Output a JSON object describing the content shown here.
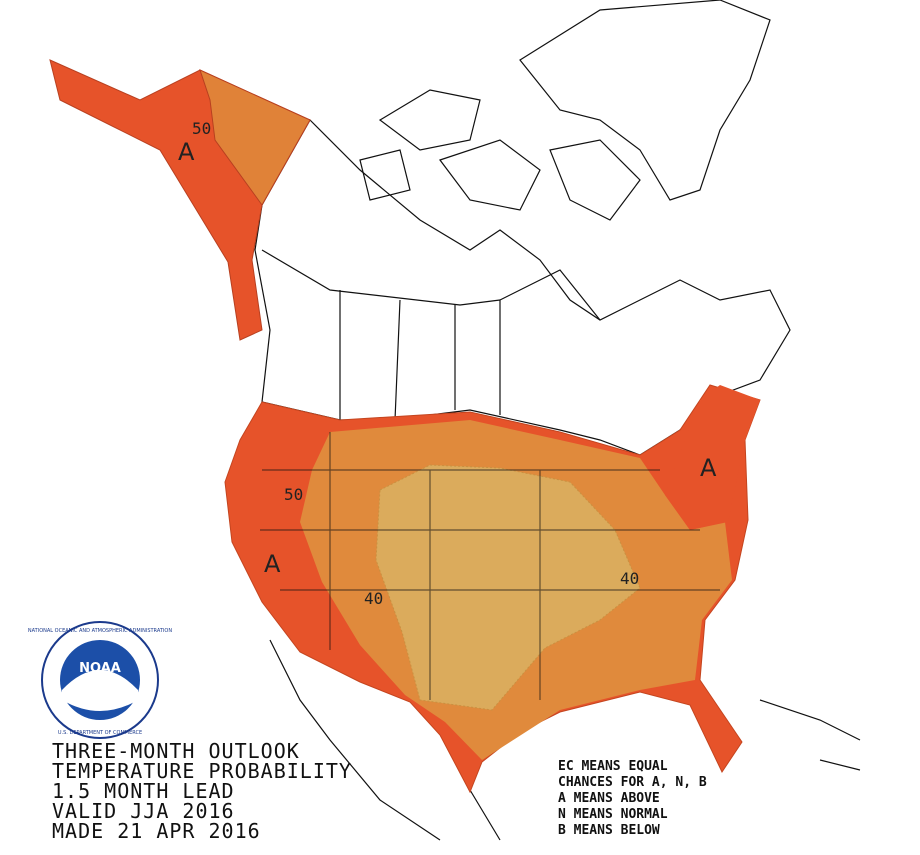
{
  "map": {
    "labels": [
      "50",
      "A",
      "50",
      "A",
      "40",
      "40",
      "A"
    ]
  },
  "title": [
    "THREE-MONTH OUTLOOK",
    "TEMPERATURE PROBABILITY",
    "1.5 MONTH LEAD",
    "VALID JJA 2016",
    "MADE 21 APR 2016"
  ],
  "legend": [
    "EC MEANS EQUAL",
    "CHANCES FOR A, N, B",
    "A MEANS ABOVE",
    "N MEANS NORMAL",
    "B MEANS BELOW"
  ],
  "logo": {
    "name": "NOAA",
    "top": "NATIONAL OCEANIC AND ATMOSPHERIC ADMINISTRATION",
    "bottom": "U.S. DEPARTMENT OF COMMERCE"
  }
}
